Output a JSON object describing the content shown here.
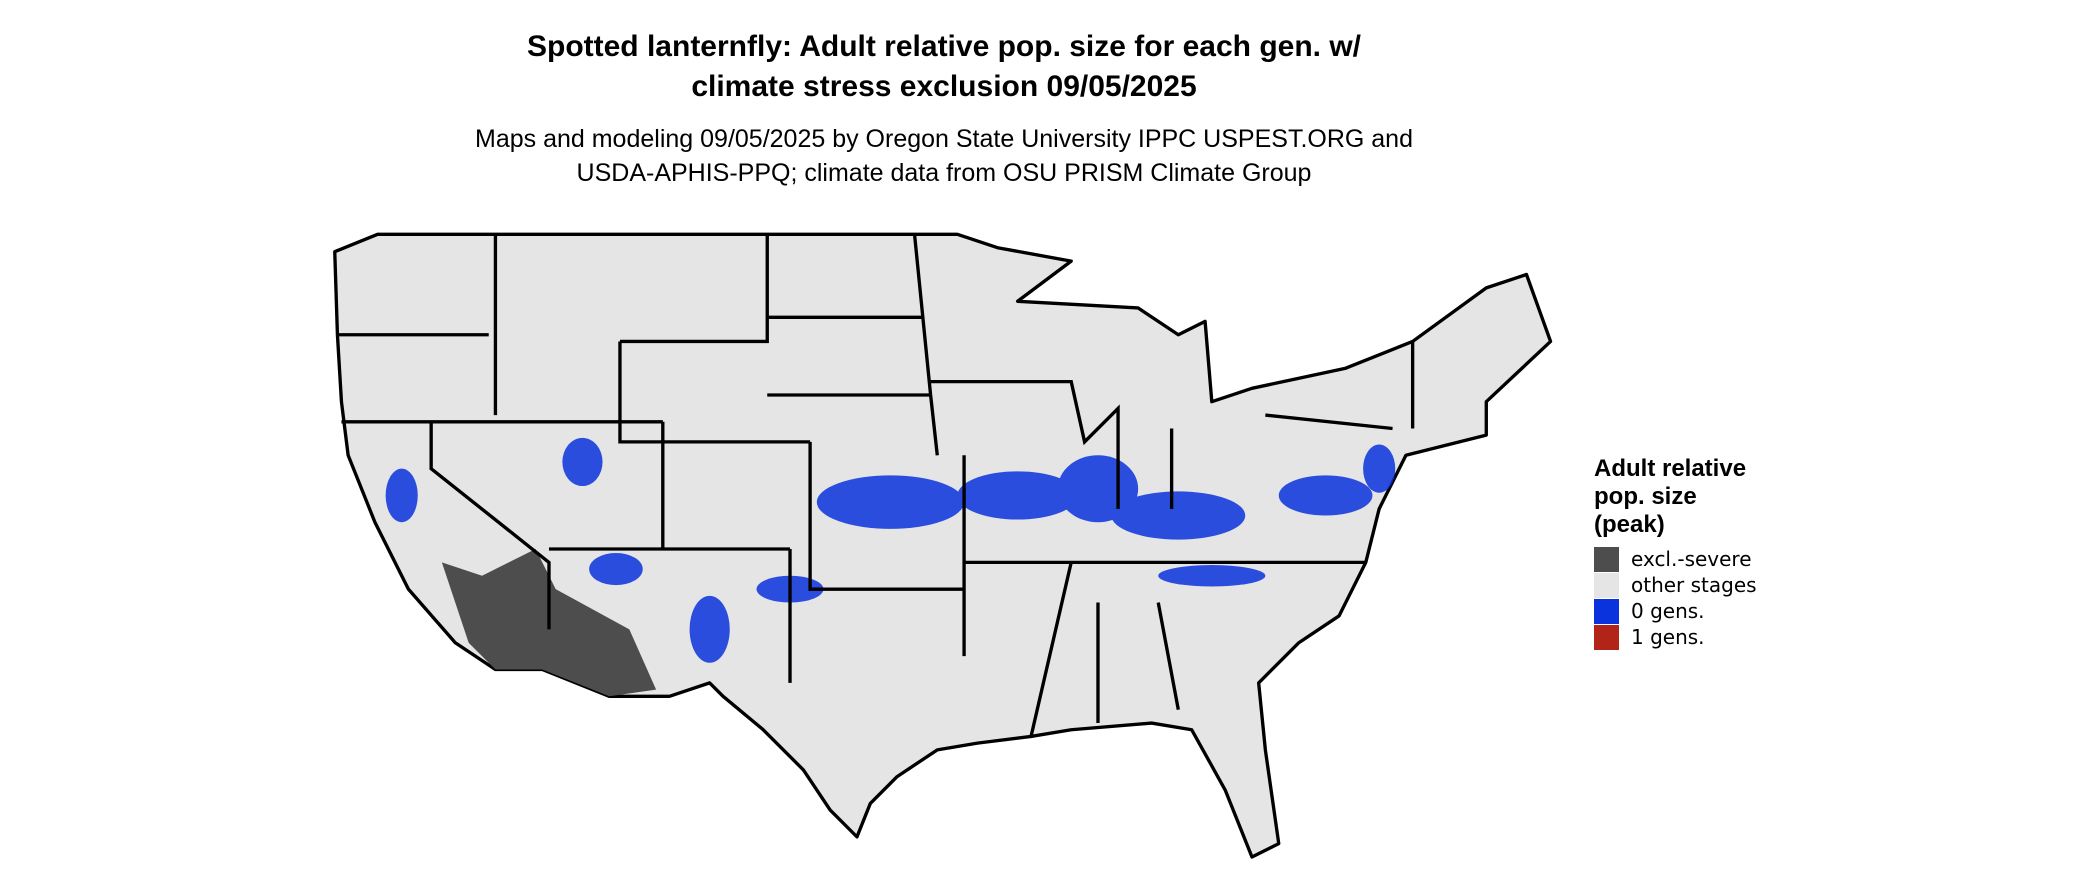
{
  "title": [
    "Spotted lanternfly: Adult relative pop. size for each gen. w/",
    "climate stress exclusion 09/05/2025"
  ],
  "subtitle": [
    "Maps and modeling 09/05/2025 by Oregon State University IPPC USPEST.ORG and",
    "USDA-APHIS-PPQ; climate data from OSU PRISM Climate Group"
  ],
  "legend": {
    "title": [
      "Adult relative",
      "pop. size",
      "(peak)"
    ],
    "items": [
      {
        "label": "excl.-severe",
        "color": "#4d4d4d"
      },
      {
        "label": "other stages",
        "color": "#e5e5e5"
      },
      {
        "label": "0 gens.",
        "color": "#0a33dd"
      },
      {
        "label": "1 gens.",
        "color": "#b22418"
      }
    ]
  }
}
